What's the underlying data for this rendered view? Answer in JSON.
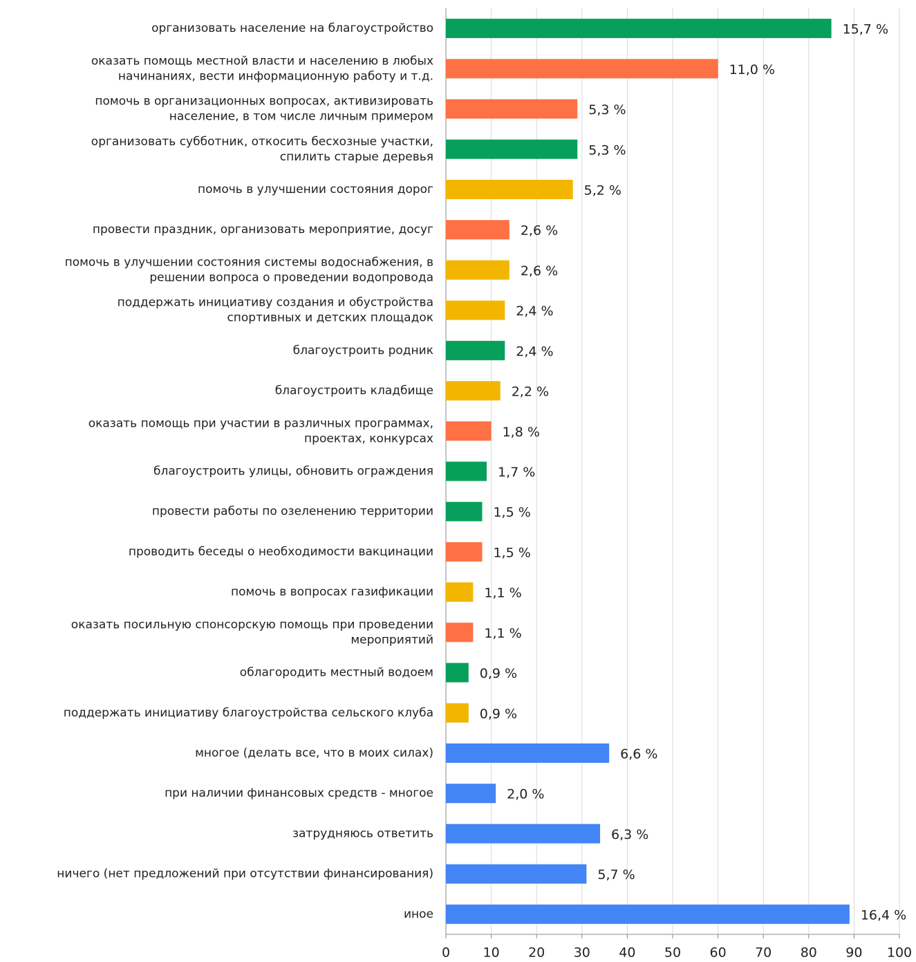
{
  "chart_data": {
    "type": "hbar",
    "categories": [
      [
        "организовать население на благоустройство"
      ],
      [
        "оказать помощь местной власти и населению в любых",
        "начинаниях, вести информационную работу и т.д."
      ],
      [
        "помочь в организационных вопросах, активизировать",
        "население, в том числе личным примером"
      ],
      [
        "организовать субботник, откосить бесхозные участки,",
        "спилить старые деревья"
      ],
      [
        "помочь в улучшении состояния дорог"
      ],
      [
        "провести праздник, организовать мероприятие, досуг"
      ],
      [
        "помочь в улучшении состояния системы водоснабжения, в",
        "решении вопроса о проведении водопровода"
      ],
      [
        "поддержать инициативу создания и обустройства",
        "спортивных и детских площадок"
      ],
      [
        "благоустроить родник"
      ],
      [
        "благоустроить кладбище"
      ],
      [
        "оказать помощь при участии в различных программах,",
        "проектах, конкурсах"
      ],
      [
        "благоустроить улицы, обновить ограждения"
      ],
      [
        "провести работы по озеленению территории"
      ],
      [
        "проводить беседы о необходимости вакцинации"
      ],
      [
        "помочь в вопросах газификации"
      ],
      [
        "оказать посильную спонсорскую помощь при проведении",
        "мероприятий"
      ],
      [
        "облагородить местный водоем"
      ],
      [
        "поддержать инициативу благоустройства сельского клуба"
      ],
      [
        "многое (делать все, что в моих силах)"
      ],
      [
        "при наличии финансовых средств - многое"
      ],
      [
        "затрудняюсь ответить"
      ],
      [
        "ничего (нет предложений при отсутствии финансирования)"
      ],
      [
        "иное"
      ]
    ],
    "values": [
      85,
      60,
      29,
      29,
      28,
      14,
      14,
      13,
      13,
      12,
      10,
      9,
      8,
      8,
      6,
      6,
      5,
      5,
      36,
      11,
      34,
      31,
      89
    ],
    "data_labels": [
      "15,7 %",
      "11,0 %",
      "5,3 %",
      "5,3 %",
      "5,2 %",
      "2,6 %",
      "2,6 %",
      "2,4 %",
      "2,4 %",
      "2,2 %",
      "1,8 %",
      "1,7 %",
      "1,5 %",
      "1,5 %",
      "1,1 %",
      "1,1 %",
      "0,9 %",
      "0,9 %",
      "6,6 %",
      "2,0 %",
      "6,3 %",
      "5,7 %",
      "16,4 %"
    ],
    "colors": [
      "#07a05a",
      "#fe7145",
      "#fe7145",
      "#07a05a",
      "#f2b600",
      "#fe7145",
      "#f2b600",
      "#f2b600",
      "#07a05a",
      "#f2b600",
      "#fe7145",
      "#07a05a",
      "#07a05a",
      "#fe7145",
      "#f2b600",
      "#fe7145",
      "#07a05a",
      "#f2b600",
      "#4285f4",
      "#4285f4",
      "#4285f4",
      "#4285f4",
      "#4285f4"
    ],
    "xlim": [
      0,
      100
    ],
    "xticks": [
      0,
      10,
      20,
      30,
      40,
      50,
      60,
      70,
      80,
      90,
      100
    ],
    "grid": true
  }
}
